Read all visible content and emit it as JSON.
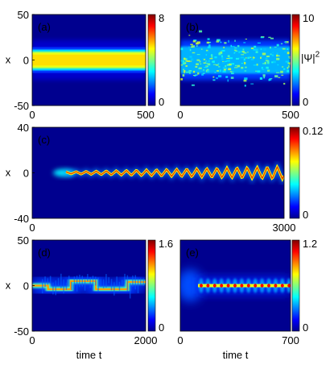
{
  "chart_data": [
    {
      "type": "heatmap",
      "panel_label": "(a)",
      "ylabel": "x",
      "xlabel": "",
      "xlim": [
        0,
        500
      ],
      "ylim": [
        -50,
        50
      ],
      "x_ticks": [
        "0",
        "500"
      ],
      "y_ticks": [
        "50",
        "0",
        "-50"
      ],
      "colorbar": {
        "min": 0,
        "max": 8,
        "ticks": [
          "8",
          "0"
        ],
        "label": ""
      },
      "pattern": "steady-band"
    },
    {
      "type": "heatmap",
      "panel_label": "(b)",
      "ylabel": "",
      "xlabel": "",
      "xlim": [
        0,
        500
      ],
      "ylim": [
        -50,
        50
      ],
      "x_ticks": [
        "0",
        "500"
      ],
      "y_ticks": [],
      "colorbar": {
        "min": 0,
        "max": 10,
        "ticks": [
          "10",
          "0"
        ],
        "label": "|Ψ|",
        "label_sup": "2"
      },
      "pattern": "turbulent-band"
    },
    {
      "type": "heatmap",
      "panel_label": "(c)",
      "ylabel": "x",
      "xlabel": "",
      "xlim": [
        0,
        3000
      ],
      "ylim": [
        -40,
        40
      ],
      "x_ticks": [
        "0",
        "3000"
      ],
      "y_ticks": [
        "40",
        "0",
        "-40"
      ],
      "colorbar": {
        "min": 0,
        "max": 0.12,
        "ticks": [
          "0.12",
          "0"
        ],
        "label": ""
      },
      "pattern": "zigzag-growing"
    },
    {
      "type": "heatmap",
      "panel_label": "(d)",
      "ylabel": "x",
      "xlabel": "time t",
      "xlim": [
        0,
        2000
      ],
      "ylim": [
        -50,
        50
      ],
      "x_ticks": [
        "0",
        "2000"
      ],
      "y_ticks": [
        "50",
        "0",
        "-50"
      ],
      "colorbar": {
        "min": 0,
        "max": 1.6,
        "ticks": [
          "1.6",
          "0"
        ],
        "label": ""
      },
      "pattern": "switching"
    },
    {
      "type": "heatmap",
      "panel_label": "(e)",
      "ylabel": "",
      "xlabel": "time t",
      "xlim": [
        0,
        700
      ],
      "ylim": [
        -50,
        50
      ],
      "x_ticks": [
        "0",
        "700"
      ],
      "y_ticks": [],
      "colorbar": {
        "min": 0,
        "max": 1.2,
        "ticks": [
          "1.2",
          "0"
        ],
        "label": ""
      },
      "pattern": "breathing"
    }
  ]
}
